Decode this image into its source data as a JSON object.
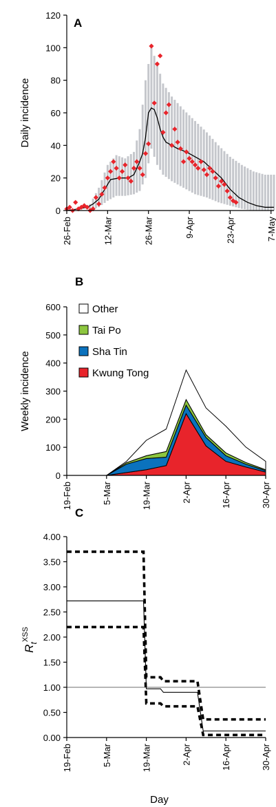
{
  "chart_data": [
    {
      "type": "scatter",
      "panel_label": "A",
      "ylabel": "Daily incidence",
      "ylim": [
        0,
        120
      ],
      "yticks": [
        0,
        20,
        40,
        60,
        80,
        100,
        120
      ],
      "xlim": [
        "2003-02-26",
        "2003-05-08"
      ],
      "xticks": [
        {
          "date": "2003-02-26",
          "label": "26-Feb"
        },
        {
          "date": "2003-03-12",
          "label": "12-Mar"
        },
        {
          "date": "2003-03-26",
          "label": "26-Mar"
        },
        {
          "date": "2003-04-09",
          "label": "9-Apr"
        },
        {
          "date": "2003-04-23",
          "label": "23-Apr"
        },
        {
          "date": "2003-05-07",
          "label": "7-May"
        }
      ],
      "colors": {
        "points": "#e8242b",
        "band": "#c5c7cc",
        "line": "#000000"
      },
      "series": [
        {
          "kind": "points",
          "x": [
            "2003-02-26",
            "2003-02-27",
            "2003-02-28",
            "2003-03-01",
            "2003-03-02",
            "2003-03-03",
            "2003-03-04",
            "2003-03-05",
            "2003-03-06",
            "2003-03-07",
            "2003-03-08",
            "2003-03-09",
            "2003-03-10",
            "2003-03-11",
            "2003-03-12",
            "2003-03-13",
            "2003-03-14",
            "2003-03-15",
            "2003-03-16",
            "2003-03-17",
            "2003-03-18",
            "2003-03-19",
            "2003-03-20",
            "2003-03-21",
            "2003-03-22",
            "2003-03-23",
            "2003-03-24",
            "2003-03-25",
            "2003-03-26",
            "2003-03-27",
            "2003-03-28",
            "2003-03-29",
            "2003-03-30",
            "2003-03-31",
            "2003-04-01",
            "2003-04-02",
            "2003-04-03",
            "2003-04-04",
            "2003-04-05",
            "2003-04-06",
            "2003-04-07",
            "2003-04-08",
            "2003-04-09",
            "2003-04-10",
            "2003-04-11",
            "2003-04-12",
            "2003-04-13",
            "2003-04-14",
            "2003-04-15",
            "2003-04-16",
            "2003-04-17",
            "2003-04-18",
            "2003-04-19",
            "2003-04-20",
            "2003-04-21",
            "2003-04-22",
            "2003-04-23",
            "2003-04-24",
            "2003-04-25"
          ],
          "y": [
            1,
            2,
            0,
            5,
            1,
            2,
            3,
            2,
            0,
            1,
            8,
            4,
            10,
            14,
            20,
            24,
            30,
            26,
            20,
            24,
            28,
            20,
            18,
            26,
            30,
            26,
            22,
            35,
            41,
            101,
            66,
            90,
            95,
            48,
            60,
            65,
            40,
            50,
            42,
            38,
            30,
            36,
            32,
            30,
            28,
            26,
            30,
            25,
            22,
            26,
            24,
            20,
            15,
            18,
            16,
            12,
            8,
            6,
            5
          ]
        },
        {
          "kind": "line",
          "x": [
            "2003-02-26",
            "2003-03-02",
            "2003-03-05",
            "2003-03-07",
            "2003-03-09",
            "2003-03-11",
            "2003-03-13",
            "2003-03-16",
            "2003-03-19",
            "2003-03-21",
            "2003-03-22",
            "2003-03-23",
            "2003-03-24",
            "2003-03-25",
            "2003-03-26",
            "2003-03-27",
            "2003-03-28",
            "2003-03-29",
            "2003-03-30",
            "2003-03-31",
            "2003-04-01",
            "2003-04-03",
            "2003-04-05",
            "2003-04-08",
            "2003-04-11",
            "2003-04-14",
            "2003-04-17",
            "2003-04-20",
            "2003-04-23",
            "2003-04-26",
            "2003-04-29",
            "2003-05-02",
            "2003-05-05",
            "2003-05-08"
          ],
          "y": [
            0,
            1,
            2,
            4,
            7,
            13,
            19,
            20,
            20,
            22,
            26,
            30,
            35,
            45,
            60,
            63,
            62,
            57,
            50,
            45,
            42,
            40,
            38,
            36,
            33,
            30,
            25,
            20,
            13,
            8,
            5,
            3,
            2,
            2
          ]
        },
        {
          "kind": "band",
          "x": [
            "2003-03-06",
            "2003-03-09",
            "2003-03-12",
            "2003-03-15",
            "2003-03-18",
            "2003-03-21",
            "2003-03-23",
            "2003-03-25",
            "2003-03-27",
            "2003-03-29",
            "2003-03-31",
            "2003-04-03",
            "2003-04-07",
            "2003-04-11",
            "2003-04-15",
            "2003-04-19",
            "2003-04-23",
            "2003-04-27",
            "2003-05-01",
            "2003-05-05",
            "2003-05-08"
          ],
          "lower": [
            0,
            2,
            6,
            9,
            9,
            10,
            12,
            20,
            38,
            28,
            22,
            18,
            14,
            10,
            8,
            5,
            3,
            1,
            0,
            0,
            0
          ],
          "upper": [
            4,
            14,
            28,
            34,
            32,
            36,
            50,
            80,
            100,
            90,
            78,
            70,
            62,
            55,
            48,
            40,
            33,
            28,
            24,
            22,
            22
          ]
        }
      ]
    },
    {
      "type": "area",
      "panel_label": "B",
      "ylabel": "Weekly incidence",
      "ylim": [
        0,
        600
      ],
      "yticks": [
        0,
        100,
        200,
        300,
        400,
        500,
        600
      ],
      "x": [
        "19-Feb",
        "26-Feb",
        "5-Mar",
        "12-Mar",
        "19-Mar",
        "26-Mar",
        "2-Apr",
        "9-Apr",
        "16-Apr",
        "23-Apr",
        "30-Apr"
      ],
      "xtick_labels": [
        "19-Feb",
        "5-Mar",
        "19-Mar",
        "2-Apr",
        "16-Apr",
        "30-Apr"
      ],
      "stacked": true,
      "legend_position": "top-left",
      "series": [
        {
          "name": "Kwung Tong",
          "color": "#e8242b",
          "values": [
            0,
            0,
            0,
            10,
            20,
            35,
            220,
            105,
            50,
            30,
            12
          ]
        },
        {
          "name": "Sha Tin",
          "color": "#0b72bd",
          "values": [
            0,
            0,
            0,
            30,
            40,
            30,
            30,
            30,
            20,
            10,
            5
          ]
        },
        {
          "name": "Tai Po",
          "color": "#8dc63f",
          "values": [
            0,
            0,
            0,
            5,
            10,
            20,
            20,
            10,
            10,
            6,
            3
          ]
        },
        {
          "name": "Other",
          "color": "#ffffff",
          "values": [
            0,
            0,
            0,
            5,
            55,
            80,
            105,
            95,
            95,
            55,
            30
          ]
        }
      ]
    },
    {
      "type": "line",
      "panel_label": "C",
      "xlabel": "Day",
      "ylabel_main": "R",
      "ylabel_sub": "t",
      "ylabel_sup": "XSS",
      "ylim": [
        0,
        4
      ],
      "yticks": [
        "0.00",
        "0.50",
        "1.00",
        "1.50",
        "2.00",
        "2.50",
        "3.00",
        "3.50",
        "4.00"
      ],
      "xlim": [
        "2003-02-19",
        "2003-04-30"
      ],
      "xticks": [
        {
          "date": "2003-02-19",
          "label": "19-Feb"
        },
        {
          "date": "2003-03-05",
          "label": "5-Mar"
        },
        {
          "date": "2003-03-19",
          "label": "19-Mar"
        },
        {
          "date": "2003-04-02",
          "label": "2-Apr"
        },
        {
          "date": "2003-04-16",
          "label": "16-Apr"
        },
        {
          "date": "2003-04-30",
          "label": "30-Apr"
        }
      ],
      "reference_line": 1.0,
      "series": [
        {
          "kind": "estimate",
          "style": "solid",
          "x": [
            "2003-02-19",
            "2003-03-18",
            "2003-03-19",
            "2003-03-24",
            "2003-03-25",
            "2003-04-06",
            "2003-04-08",
            "2003-04-30"
          ],
          "y": [
            2.72,
            2.72,
            0.97,
            0.97,
            0.9,
            0.9,
            0.13,
            0.13
          ]
        },
        {
          "kind": "upper",
          "style": "dashed",
          "x": [
            "2003-02-19",
            "2003-03-18",
            "2003-03-19",
            "2003-03-24",
            "2003-03-25",
            "2003-04-06",
            "2003-04-08",
            "2003-04-30"
          ],
          "y": [
            3.7,
            3.7,
            1.2,
            1.2,
            1.12,
            1.12,
            0.36,
            0.36
          ]
        },
        {
          "kind": "lower",
          "style": "dashed",
          "x": [
            "2003-02-19",
            "2003-03-18",
            "2003-03-19",
            "2003-03-24",
            "2003-03-25",
            "2003-04-06",
            "2003-04-08",
            "2003-04-30"
          ],
          "y": [
            2.2,
            2.2,
            0.68,
            0.68,
            0.62,
            0.62,
            0.05,
            0.05
          ]
        }
      ]
    }
  ]
}
